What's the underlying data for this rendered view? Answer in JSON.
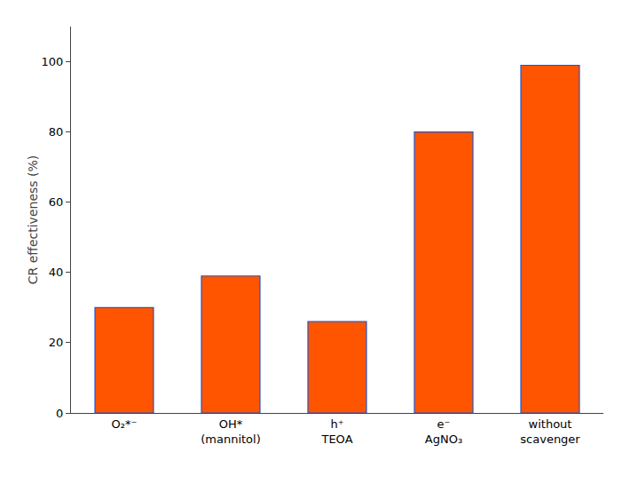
{
  "chart_data": {
    "type": "bar",
    "categories": [
      "O₂*⁻",
      "OH*\n(mannitol)",
      "h⁺\nTEOA",
      "e⁻\nAgNO₃",
      "without\nscavenger"
    ],
    "values": [
      30,
      39,
      26,
      80,
      99
    ],
    "color": "#FF5500",
    "ylabel": "CR effectiveness (%)",
    "ylim": [
      0,
      110
    ],
    "yticks": [
      0,
      20,
      40,
      60,
      80,
      100
    ],
    "grid": false
  }
}
